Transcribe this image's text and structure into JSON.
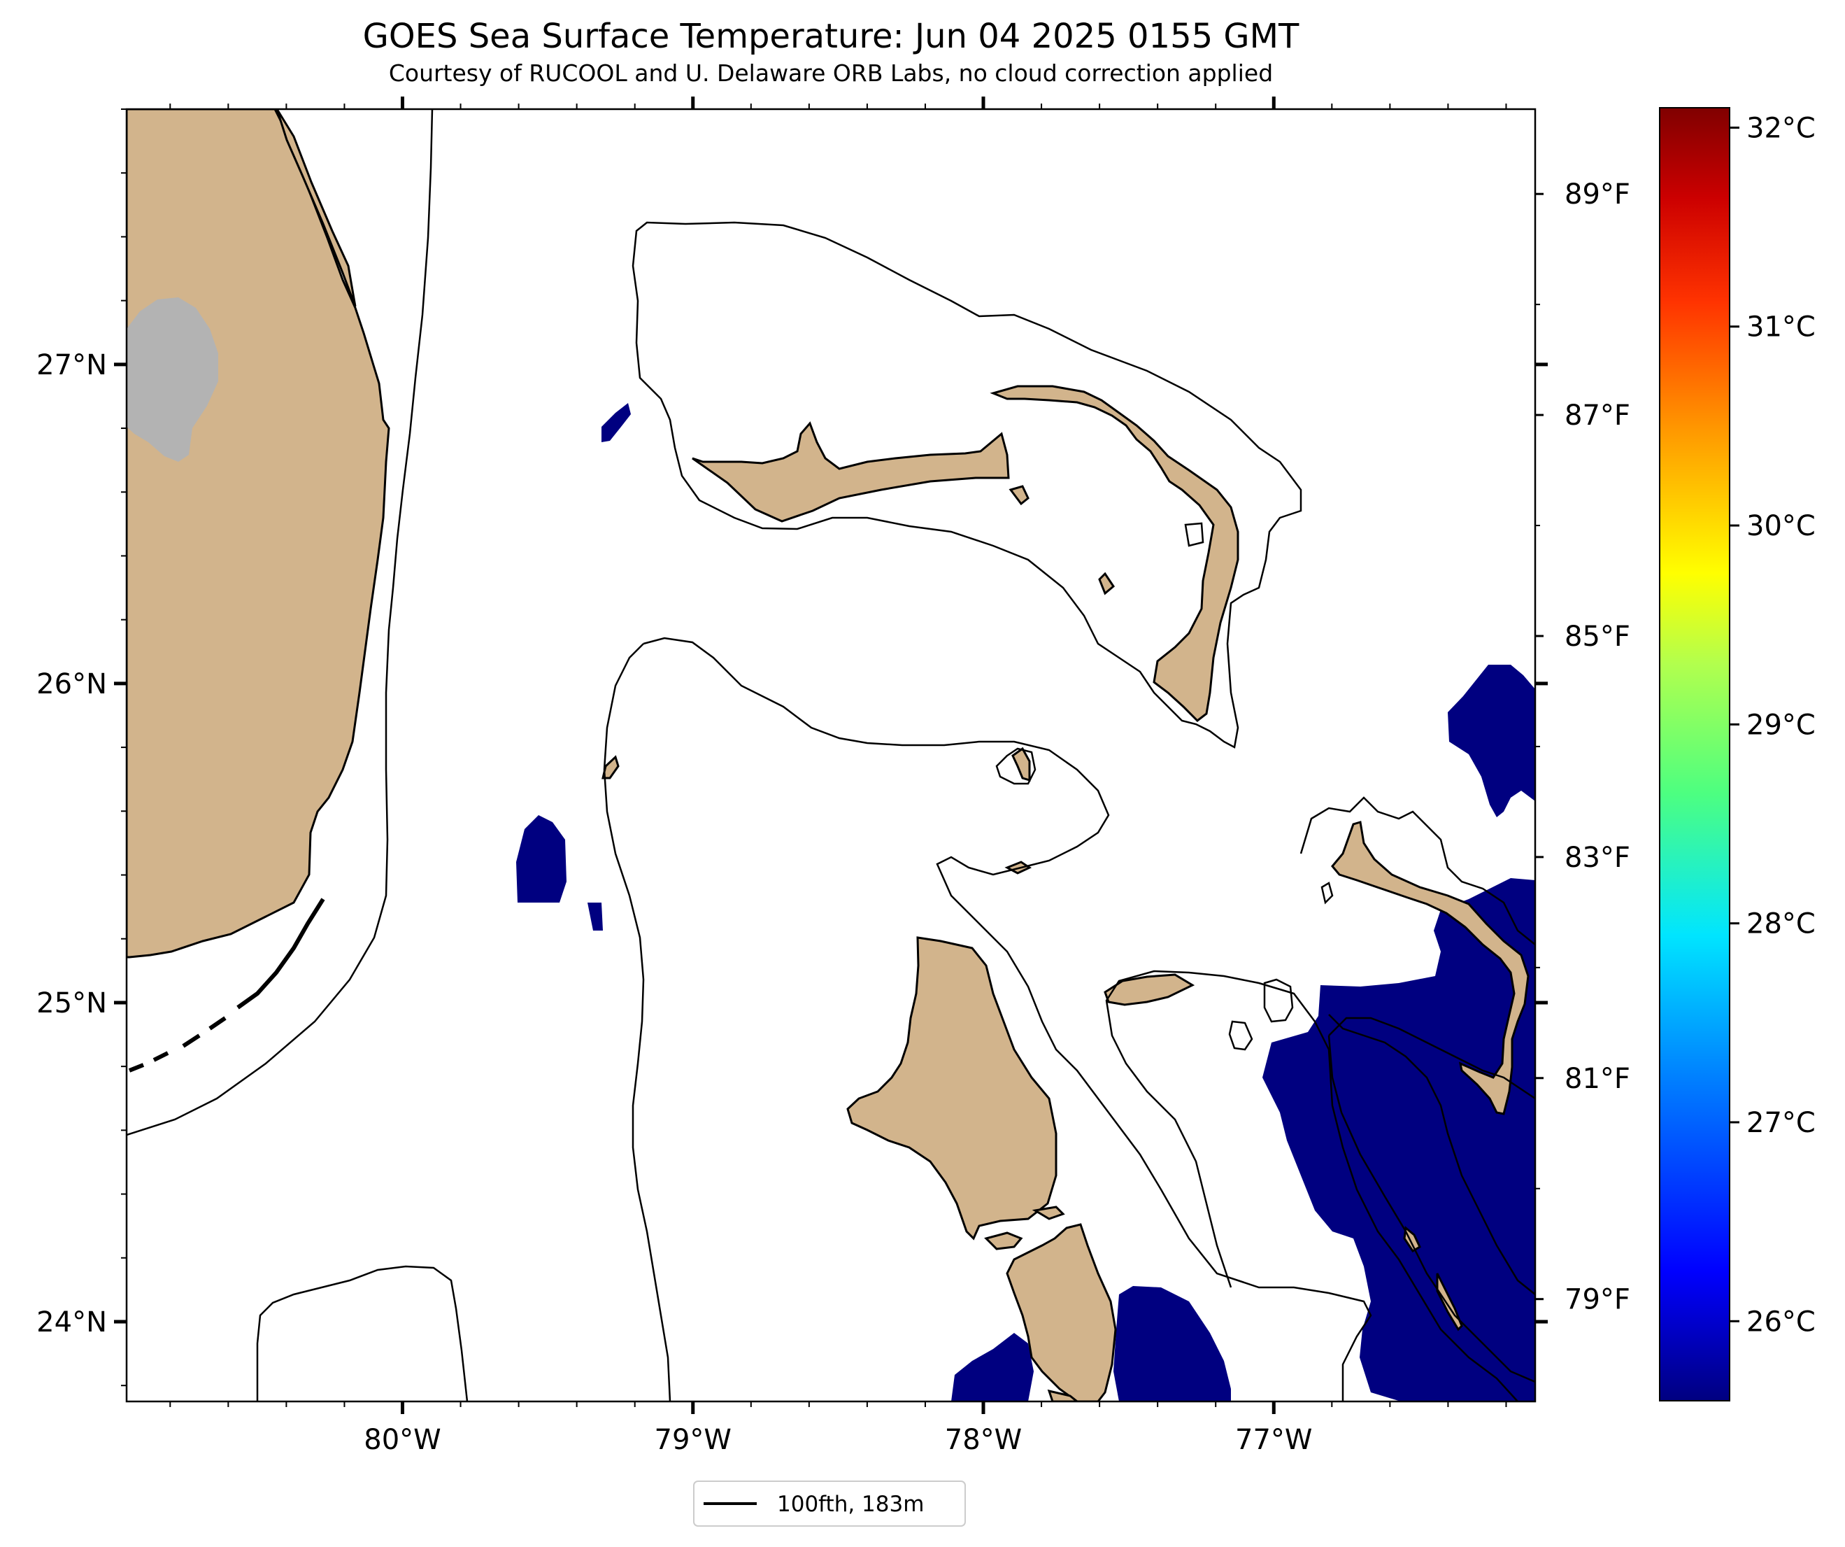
{
  "title": "GOES Sea Surface Temperature: Jun 04 2025 0155 GMT",
  "subtitle": "Courtesy of RUCOOL and U. Delaware ORB Labs, no cloud correction applied",
  "map": {
    "lon_range": [
      -80.95,
      -76.1
    ],
    "lat_range": [
      23.75,
      27.8
    ],
    "lon_ticks": [
      {
        "value": -80,
        "label": "80°W"
      },
      {
        "value": -79,
        "label": "79°W"
      },
      {
        "value": -78,
        "label": "78°W"
      },
      {
        "value": -77,
        "label": "77°W"
      }
    ],
    "lat_ticks": [
      {
        "value": 24,
        "label": "24°N"
      },
      {
        "value": 25,
        "label": "25°N"
      },
      {
        "value": 26,
        "label": "26°N"
      },
      {
        "value": 27,
        "label": "27°N"
      }
    ],
    "land_color": "#d2b48c",
    "ocean_color": "#ffffff",
    "lake_color": "#b3b3b3",
    "cold_sst_color": "#000080"
  },
  "colorbar": {
    "celsius_range": [
      25.6,
      32.1
    ],
    "celsius_ticks": [
      {
        "value": 26,
        "label": "26°C"
      },
      {
        "value": 27,
        "label": "27°C"
      },
      {
        "value": 28,
        "label": "28°C"
      },
      {
        "value": 29,
        "label": "29°C"
      },
      {
        "value": 30,
        "label": "30°C"
      },
      {
        "value": 31,
        "label": "31°C"
      },
      {
        "value": 32,
        "label": "32°C"
      }
    ],
    "fahrenheit_ticks": [
      {
        "value": 79,
        "label": "79°F"
      },
      {
        "value": 81,
        "label": "81°F"
      },
      {
        "value": 83,
        "label": "83°F"
      },
      {
        "value": 85,
        "label": "85°F"
      },
      {
        "value": 87,
        "label": "87°F"
      },
      {
        "value": 89,
        "label": "89°F"
      }
    ],
    "colormap": [
      "#000080",
      "#0000ff",
      "#0080ff",
      "#00e5ff",
      "#4dff80",
      "#b2ff4d",
      "#ffff00",
      "#ff9900",
      "#ff3300",
      "#cc0000",
      "#800000"
    ]
  },
  "legend": {
    "label": "100fth, 183m"
  }
}
